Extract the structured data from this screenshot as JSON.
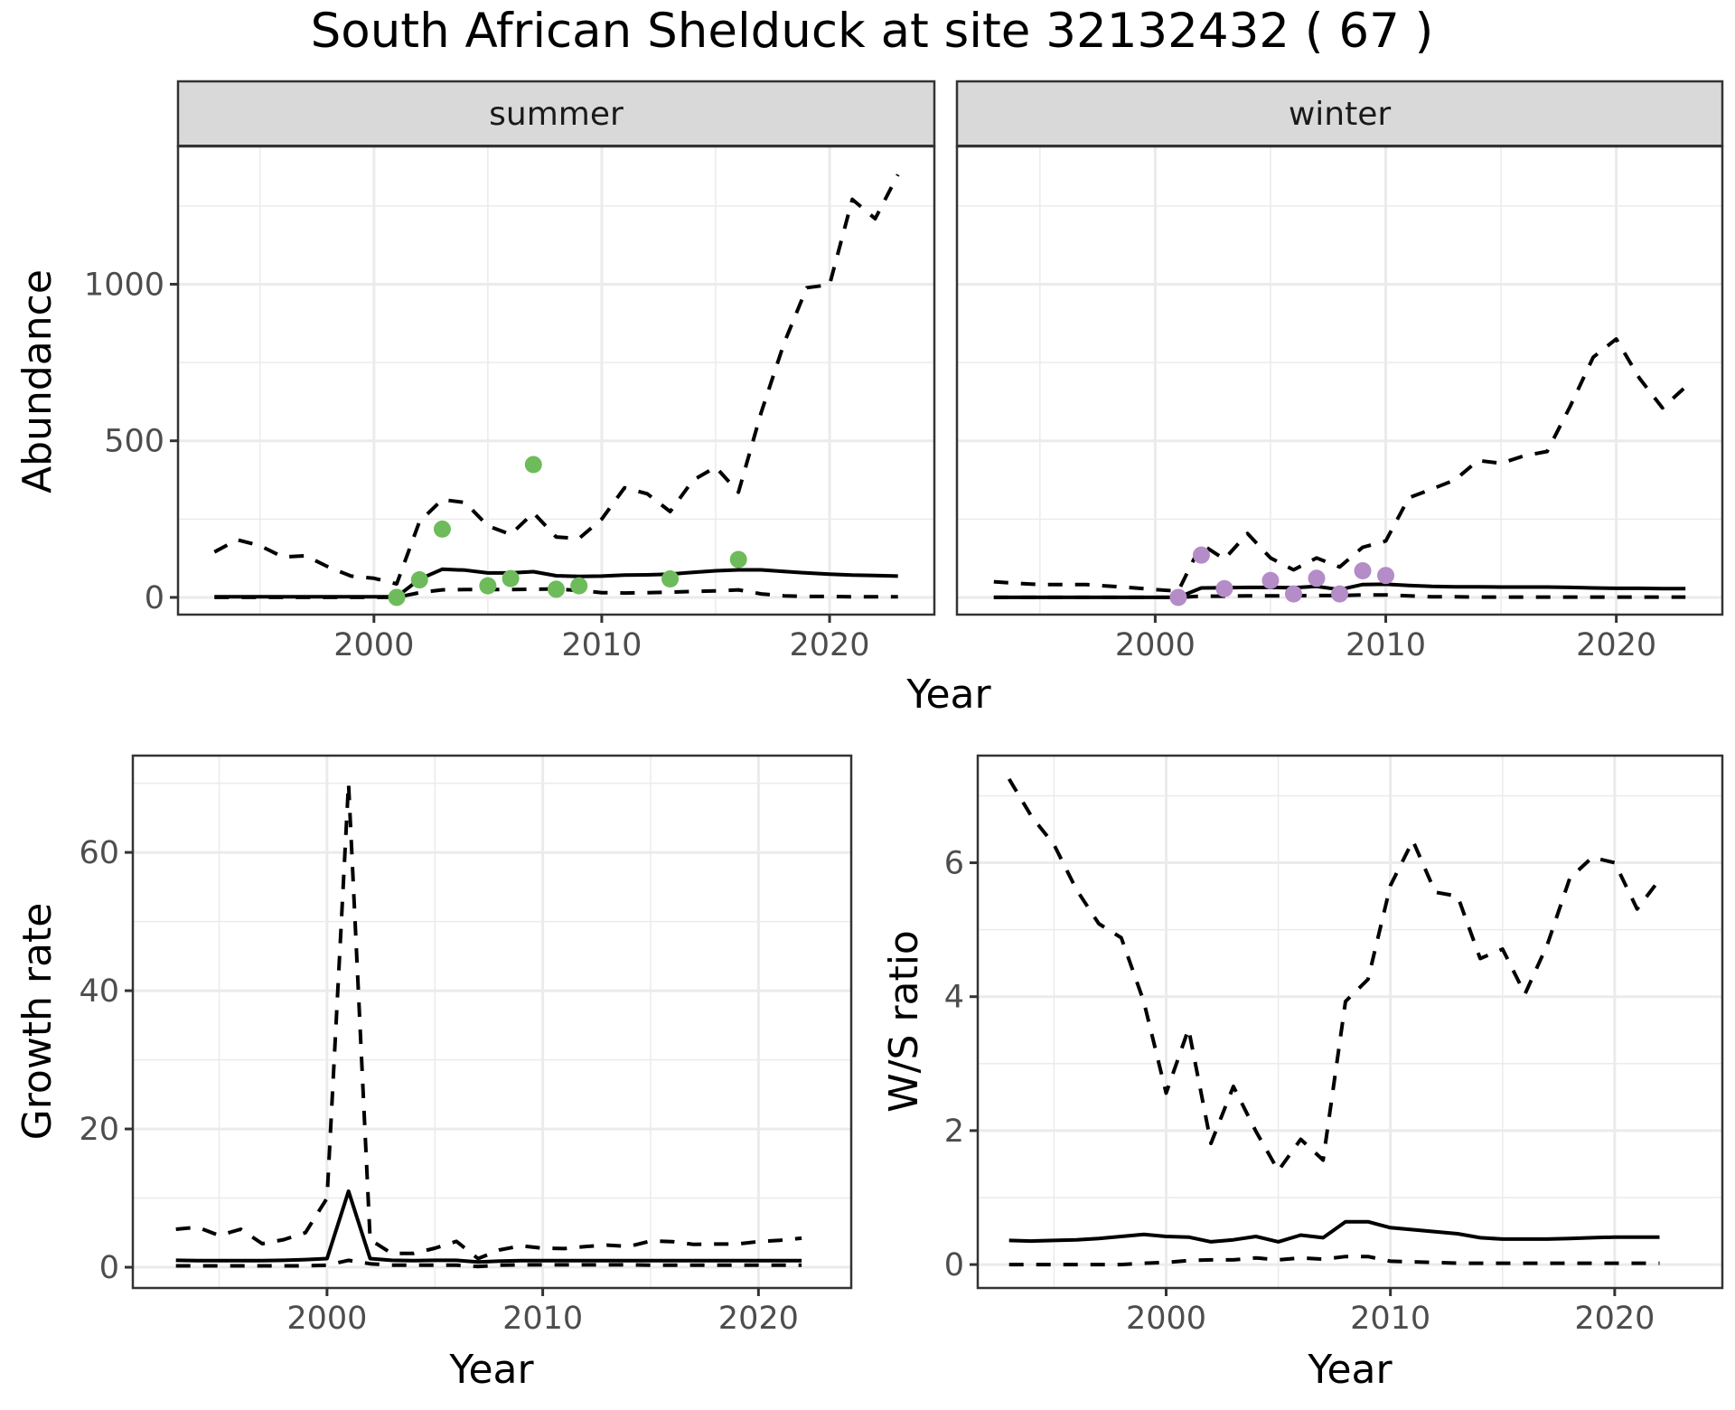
{
  "chart_data": {
    "title": "South African Shelduck at site 32132432 ( 67 )",
    "colors": {
      "summer_points": "#6DBB5A",
      "winter_points": "#B48CC7",
      "lines": "#000000",
      "strip_bg": "#D9D9D9"
    },
    "abundance": {
      "type": "line",
      "ylabel": "Abundance",
      "xlabel": "Year",
      "xlim": [
        1991.4,
        2024.6
      ],
      "ylim": [
        -55,
        1440
      ],
      "x_ticks": [
        2000,
        2010,
        2020
      ],
      "x_tick_labels": [
        "2000",
        "2010",
        "2020"
      ],
      "y_ticks": [
        0,
        500,
        1000
      ],
      "y_tick_labels": [
        "0",
        "500",
        "1000"
      ],
      "x_minor": [
        1995,
        2005,
        2015
      ],
      "y_minor": [
        250,
        750,
        1250
      ],
      "grid": true,
      "panels": [
        {
          "strip": "summer",
          "years": [
            1993,
            1994,
            1995,
            1996,
            1997,
            1998,
            1999,
            2000,
            2001,
            2002,
            2003,
            2004,
            2005,
            2006,
            2007,
            2008,
            2009,
            2010,
            2011,
            2012,
            2013,
            2014,
            2015,
            2016,
            2017,
            2018,
            2019,
            2020,
            2021,
            2022,
            2023
          ],
          "mean": [
            2,
            2,
            2,
            2,
            2,
            2,
            2,
            2,
            2,
            58,
            90,
            87,
            78,
            78,
            82,
            69,
            67,
            68,
            71,
            72,
            74,
            80,
            85,
            88,
            88,
            83,
            78,
            74,
            71,
            70,
            68
          ],
          "upper": [
            145,
            184,
            165,
            129,
            133,
            97,
            68,
            61,
            43,
            242,
            312,
            303,
            228,
            201,
            270,
            193,
            188,
            250,
            350,
            331,
            274,
            374,
            416,
            336,
            591,
            811,
            989,
            998,
            1271,
            1209,
            1350
          ],
          "lower": [
            0,
            0,
            0,
            0,
            0,
            0,
            0,
            0,
            0,
            15,
            24,
            25,
            25,
            25,
            26,
            27,
            22,
            15,
            14,
            15,
            17,
            19,
            21,
            24,
            11,
            5,
            3,
            3,
            2,
            2,
            2
          ],
          "points": {
            "years": [
              2001,
              2002,
              2003,
              2005,
              2006,
              2007,
              2008,
              2009,
              2013,
              2016
            ],
            "values": [
              0,
              56,
              218,
              37,
              60,
              424,
              26,
              37,
              59,
              121
            ]
          }
        },
        {
          "strip": "winter",
          "years": [
            1993,
            1994,
            1995,
            1996,
            1997,
            1998,
            1999,
            2000,
            2001,
            2002,
            2003,
            2004,
            2005,
            2006,
            2007,
            2008,
            2009,
            2010,
            2011,
            2012,
            2013,
            2014,
            2015,
            2016,
            2017,
            2018,
            2019,
            2020,
            2021,
            2022,
            2023
          ],
          "mean": [
            0,
            0,
            0,
            0,
            0,
            0,
            0,
            0,
            0,
            30,
            31,
            32,
            32,
            31,
            35,
            25,
            41,
            42,
            38,
            35,
            34,
            34,
            33,
            33,
            33,
            32,
            30,
            29,
            29,
            28,
            28
          ],
          "upper": [
            50,
            45,
            41,
            41,
            41,
            36,
            31,
            25,
            20,
            170,
            122,
            204,
            126,
            88,
            126,
            97,
            160,
            180,
            318,
            346,
            375,
            437,
            428,
            452,
            466,
            610,
            767,
            825,
            700,
            605,
            672
          ],
          "lower": [
            0,
            0,
            0,
            0,
            0,
            0,
            0,
            0,
            0,
            4,
            4,
            5,
            5,
            5,
            6,
            6,
            8,
            8,
            5,
            2,
            2,
            1,
            1,
            1,
            1,
            1,
            1,
            1,
            1,
            1,
            1
          ],
          "points": {
            "years": [
              2001,
              2002,
              2003,
              2005,
              2006,
              2007,
              2008,
              2009,
              2010
            ],
            "values": [
              0,
              135,
              28,
              54,
              11,
              61,
              11,
              85,
              70
            ]
          }
        }
      ]
    },
    "growth": {
      "type": "line",
      "ylabel": "Growth rate",
      "xlabel": "Year",
      "xlim": [
        1991.0,
        2024.3
      ],
      "ylim": [
        -3,
        74
      ],
      "x_ticks": [
        2000,
        2010,
        2020
      ],
      "x_tick_labels": [
        "2000",
        "2010",
        "2020"
      ],
      "y_ticks": [
        0,
        20,
        40,
        60
      ],
      "y_tick_labels": [
        "0",
        "20",
        "40",
        "60"
      ],
      "x_minor": [
        1995,
        2005,
        2015
      ],
      "y_minor": [
        10,
        30,
        50,
        70
      ],
      "grid": true,
      "years": [
        1993,
        1994,
        1995,
        1996,
        1997,
        1998,
        1999,
        2000,
        2001,
        2002,
        2003,
        2004,
        2005,
        2006,
        2007,
        2008,
        2009,
        2010,
        2011,
        2012,
        2013,
        2014,
        2015,
        2016,
        2017,
        2018,
        2019,
        2020,
        2021,
        2022
      ],
      "mean": [
        1.0,
        0.95,
        0.95,
        0.95,
        0.95,
        1.0,
        1.1,
        1.25,
        11.0,
        1.25,
        1.0,
        0.95,
        1.0,
        1.0,
        0.75,
        0.9,
        0.95,
        0.95,
        0.95,
        0.95,
        0.95,
        0.95,
        0.95,
        0.95,
        0.95,
        0.95,
        0.95,
        0.95,
        0.95,
        0.95
      ],
      "upper": [
        5.5,
        5.8,
        4.6,
        5.5,
        3.4,
        4.0,
        5.0,
        10.0,
        70.0,
        4.0,
        2.0,
        2.0,
        2.75,
        3.75,
        1.25,
        2.5,
        3.1,
        2.75,
        2.7,
        3.0,
        3.2,
        3.0,
        3.8,
        3.7,
        3.3,
        3.35,
        3.35,
        3.7,
        3.9,
        4.2
      ],
      "lower": [
        0.2,
        0.2,
        0.2,
        0.2,
        0.2,
        0.2,
        0.2,
        0.3,
        1.0,
        0.5,
        0.3,
        0.3,
        0.3,
        0.3,
        0.1,
        0.3,
        0.35,
        0.35,
        0.35,
        0.35,
        0.35,
        0.35,
        0.3,
        0.3,
        0.3,
        0.3,
        0.3,
        0.3,
        0.3,
        0.3
      ]
    },
    "ws_ratio": {
      "type": "line",
      "ylabel": "W/S ratio",
      "xlabel": "Year",
      "xlim": [
        1991.6,
        2024.8
      ],
      "ylim": [
        -0.35,
        7.6
      ],
      "x_ticks": [
        2000,
        2010,
        2020
      ],
      "x_tick_labels": [
        "2000",
        "2010",
        "2020"
      ],
      "y_ticks": [
        0,
        2,
        4,
        6
      ],
      "y_tick_labels": [
        "0",
        "2",
        "4",
        "6"
      ],
      "x_minor": [
        1995,
        2005,
        2015
      ],
      "y_minor": [
        1,
        3,
        5,
        7
      ],
      "grid": true,
      "years": [
        1993,
        1994,
        1995,
        1996,
        1997,
        1998,
        1999,
        2000,
        2001,
        2002,
        2003,
        2004,
        2005,
        2006,
        2007,
        2008,
        2009,
        2010,
        2011,
        2012,
        2013,
        2014,
        2015,
        2016,
        2017,
        2018,
        2019,
        2020,
        2021,
        2022
      ],
      "mean": [
        0.36,
        0.35,
        0.36,
        0.37,
        0.39,
        0.42,
        0.45,
        0.42,
        0.41,
        0.34,
        0.37,
        0.42,
        0.34,
        0.44,
        0.4,
        0.64,
        0.64,
        0.55,
        0.52,
        0.49,
        0.46,
        0.4,
        0.38,
        0.38,
        0.38,
        0.39,
        0.4,
        0.41,
        0.41,
        0.41
      ],
      "upper": [
        7.25,
        6.69,
        6.27,
        5.6,
        5.09,
        4.88,
        3.93,
        2.56,
        3.52,
        1.81,
        2.66,
        1.99,
        1.4,
        1.87,
        1.56,
        3.93,
        4.26,
        5.66,
        6.33,
        5.56,
        5.5,
        4.57,
        4.71,
        4.04,
        4.78,
        5.77,
        6.08,
        6.0,
        5.31,
        5.75
      ],
      "lower": [
        0.0,
        0.0,
        0.0,
        0.0,
        0.0,
        0.0,
        0.02,
        0.03,
        0.06,
        0.07,
        0.07,
        0.1,
        0.07,
        0.1,
        0.08,
        0.12,
        0.12,
        0.05,
        0.04,
        0.03,
        0.02,
        0.02,
        0.02,
        0.02,
        0.02,
        0.02,
        0.02,
        0.02,
        0.02,
        0.02
      ]
    }
  }
}
